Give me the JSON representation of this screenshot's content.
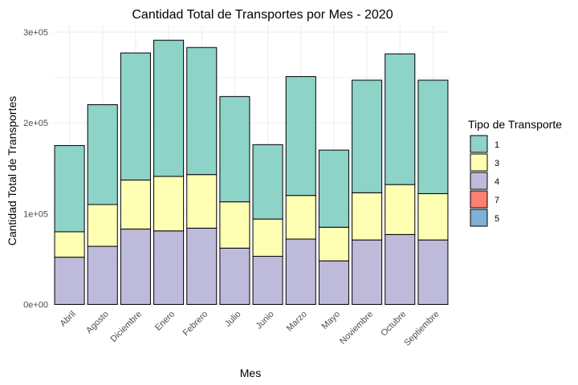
{
  "chart_data": {
    "type": "bar",
    "stacked": true,
    "title": "Cantidad Total de Transportes por Mes - 2020",
    "xlabel": "Mes",
    "ylabel": "Cantidad Total de Transportes",
    "ylim": [
      0,
      310000
    ],
    "y_ticks": [
      {
        "value": 0,
        "label": "0e+00"
      },
      {
        "value": 100000,
        "label": "1e+05"
      },
      {
        "value": 200000,
        "label": "2e+05"
      },
      {
        "value": 300000,
        "label": "3e+05"
      }
    ],
    "grid": true,
    "categories": [
      "Abril",
      "Agosto",
      "Diciembre",
      "Enero",
      "Febrero",
      "Julio",
      "Junio",
      "Marzo",
      "Mayo",
      "Noviembre",
      "Octubre",
      "Septiembre"
    ],
    "legend": {
      "title": "Tipo de Transporte",
      "position": "right",
      "entries": [
        "1",
        "3",
        "4",
        "7",
        "5"
      ]
    },
    "series": [
      {
        "name": "4",
        "color": "#bebada",
        "values": [
          52000,
          64000,
          83000,
          81000,
          84000,
          62000,
          53000,
          72000,
          48000,
          71000,
          77000,
          71000
        ]
      },
      {
        "name": "3",
        "color": "#ffffb3",
        "values": [
          28000,
          46000,
          54000,
          60000,
          59000,
          51000,
          41000,
          48000,
          37000,
          52000,
          55000,
          51000
        ]
      },
      {
        "name": "1",
        "color": "#8dd3c7",
        "values": [
          95000,
          110000,
          140000,
          150000,
          140000,
          116000,
          82000,
          131000,
          85000,
          124000,
          144000,
          125000
        ]
      },
      {
        "name": "7",
        "color": "#fb8072",
        "values": [
          0,
          0,
          0,
          0,
          0,
          0,
          0,
          0,
          0,
          0,
          0,
          0
        ]
      },
      {
        "name": "5",
        "color": "#80b1d3",
        "values": [
          0,
          0,
          0,
          0,
          0,
          0,
          0,
          0,
          0,
          0,
          0,
          0
        ]
      }
    ]
  }
}
